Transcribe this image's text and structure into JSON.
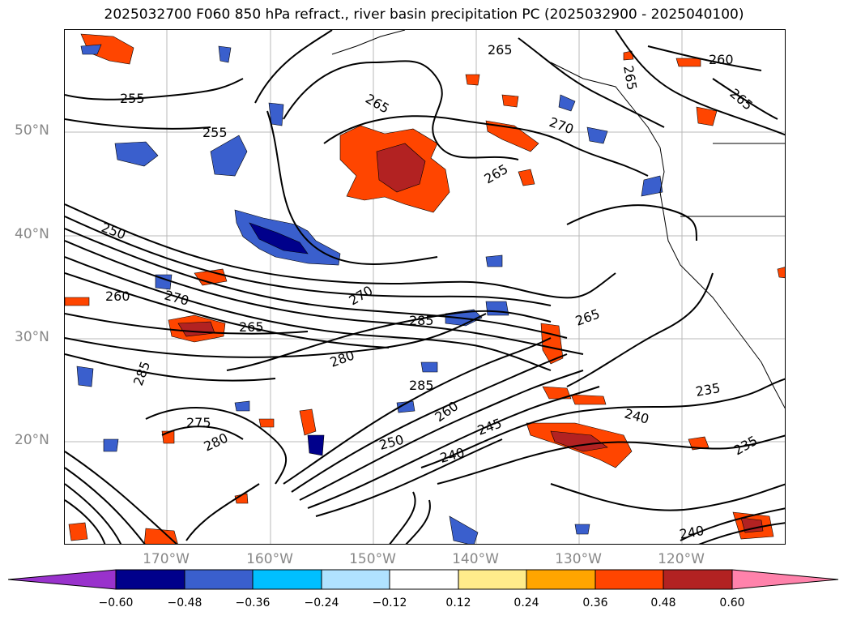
{
  "title": "2025032700 F060 850 hPa refract., river basin precipitation PC (2025032900 - 2025040100)",
  "lat_labels": [
    "50°N",
    "40°N",
    "30°N",
    "20°N"
  ],
  "lon_labels": [
    "170°W",
    "160°W",
    "150°W",
    "140°W",
    "130°W",
    "120°W"
  ],
  "contour_labels": [
    "255",
    "255",
    "250",
    "260",
    "270",
    "265",
    "265",
    "270",
    "285",
    "280",
    "285",
    "285",
    "275",
    "280",
    "250",
    "260",
    "245",
    "240",
    "265",
    "235",
    "240",
    "235",
    "260",
    "265",
    "270",
    "265",
    "265",
    "265",
    "240"
  ],
  "colorbar": {
    "ticks": [
      "−0.60",
      "−0.48",
      "−0.36",
      "−0.24",
      "−0.12",
      "0.12",
      "0.24",
      "0.36",
      "0.48",
      "0.60"
    ],
    "colors": [
      "#9932CC",
      "#00008B",
      "#3A5FCD",
      "#00BFFF",
      "#B0E2FF",
      "#FFFFFF",
      "#FFEC8B",
      "#FFA500",
      "#FF4500",
      "#B22222",
      "#FF82AB"
    ]
  }
}
